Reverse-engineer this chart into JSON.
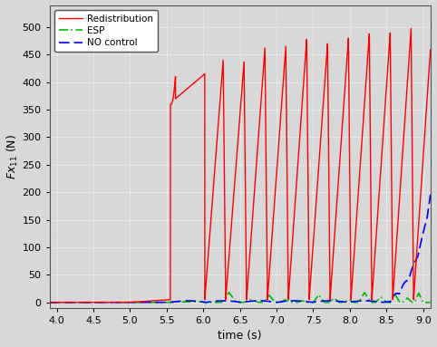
{
  "title": "",
  "xlabel": "time (s)",
  "ylabel": "Fx$_{11}$ (N)",
  "xlim": [
    3.9,
    9.1
  ],
  "ylim": [
    -10,
    540
  ],
  "yticks": [
    0,
    50,
    100,
    150,
    200,
    250,
    300,
    350,
    400,
    450,
    500
  ],
  "xticks": [
    4.0,
    4.5,
    5.0,
    5.5,
    6.0,
    6.5,
    7.0,
    7.5,
    8.0,
    8.5,
    9.0
  ],
  "legend_labels": [
    "Redistribution",
    "ESP",
    "NO control"
  ],
  "bg_color": "#d8d8d8",
  "red_color": "#ff0000",
  "green_color": "#00bb00",
  "blue_color": "#0000ff"
}
